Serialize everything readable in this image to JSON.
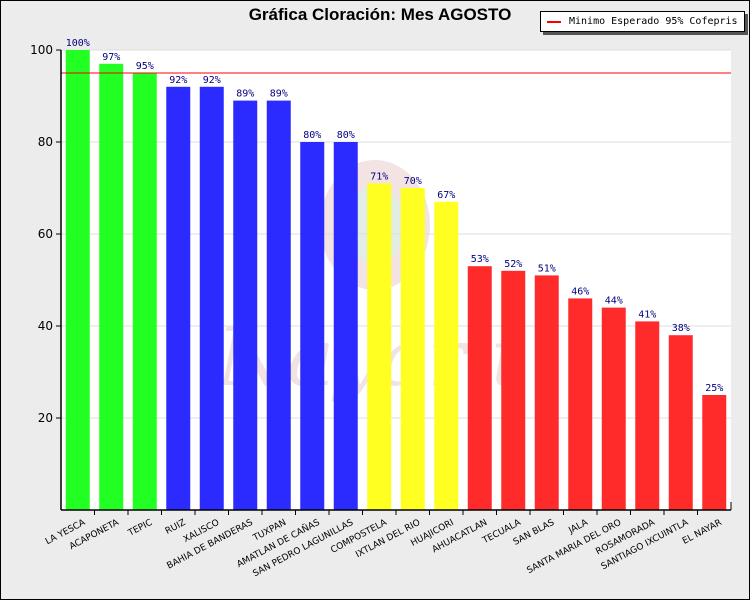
{
  "chart_data": {
    "type": "bar",
    "title": "Gráfica Cloración: Mes AGOSTO",
    "xlabel": "",
    "ylabel": "",
    "ylim": [
      0,
      100
    ],
    "yticks": [
      20,
      40,
      60,
      80,
      100
    ],
    "grid": true,
    "legend": {
      "position": "top-right",
      "entries": [
        "Minimo Esperado 95% Cofepris"
      ]
    },
    "reference_line": {
      "label": "Minimo Esperado 95% Cofepris",
      "value": 95,
      "color": "#ff0000"
    },
    "categories": [
      "LA YESCA",
      "ACAPONETA",
      "TEPIC",
      "RUIZ",
      "XALISCO",
      "BAHIA DE BANDERAS",
      "TUXPAN",
      "AMATLAN DE CAÑAS",
      "SAN PEDRO LAGUNILLAS",
      "COMPOSTELA",
      "IXTLAN DEL RIO",
      "HUAJICORI",
      "AHUACATLAN",
      "TECUALA",
      "SAN BLAS",
      "JALA",
      "SANTA MARIA DEL ORO",
      "ROSAMORADA",
      "SANTIAGO IXCUINTLA",
      "EL NAYAR"
    ],
    "values": [
      100,
      97,
      95,
      92,
      92,
      89,
      89,
      80,
      80,
      71,
      70,
      67,
      53,
      52,
      51,
      46,
      44,
      41,
      38,
      25
    ],
    "value_labels": [
      "100%",
      "97%",
      "95%",
      "92%",
      "92%",
      "89%",
      "89%",
      "80%",
      "80%",
      "71%",
      "70%",
      "67%",
      "53%",
      "52%",
      "51%",
      "46%",
      "44%",
      "41%",
      "38%",
      "25%"
    ],
    "colors": [
      "#22ff22",
      "#22ff22",
      "#22ff22",
      "#2b2bff",
      "#2b2bff",
      "#2b2bff",
      "#2b2bff",
      "#2b2bff",
      "#2b2bff",
      "#ffff22",
      "#ffff22",
      "#ffff22",
      "#ff2b2b",
      "#ff2b2b",
      "#ff2b2b",
      "#ff2b2b",
      "#ff2b2b",
      "#ff2b2b",
      "#ff2b2b",
      "#ff2b2b"
    ],
    "label_color": "#000080"
  }
}
